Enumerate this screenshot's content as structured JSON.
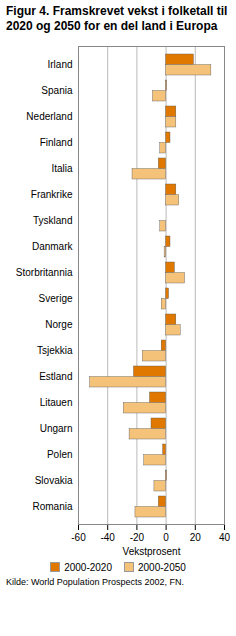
{
  "chart_data": {
    "type": "bar",
    "orientation": "horizontal",
    "title": "Figur 4. Framskrevet vekst i folketall til 2020 og 2050 for en del land i Europa",
    "source": "Kilde: World Population Prospects 2002, FN.",
    "categories": [
      "Irland",
      "Spania",
      "Nederland",
      "Finland",
      "Italia",
      "Frankrike",
      "Tyskland",
      "Danmark",
      "Storbritannia",
      "Sverige",
      "Norge",
      "Tsjekkia",
      "Estland",
      "Litauen",
      "Ungarn",
      "Polen",
      "Slovakia",
      "Romania"
    ],
    "series": [
      {
        "name": "2000-2020",
        "color": "#e07800",
        "values": [
          19,
          0.5,
          7,
          3,
          -5,
          7,
          0,
          3,
          6,
          2,
          7,
          -3,
          -22,
          -11,
          -10,
          -2,
          0.5,
          -5
        ]
      },
      {
        "name": "2000-2050",
        "color": "#f5c27a",
        "values": [
          31,
          -9,
          7,
          -4,
          -23,
          9,
          -4,
          -1,
          13,
          -3,
          10,
          -16,
          -52,
          -29,
          -25,
          -15,
          -8,
          -21
        ]
      }
    ],
    "xlabel": "Vekstprosent",
    "xlim": [
      -60,
      40
    ],
    "xticks": [
      -60,
      -40,
      -20,
      0,
      20,
      40
    ],
    "grid": true,
    "legend": "bottom"
  }
}
